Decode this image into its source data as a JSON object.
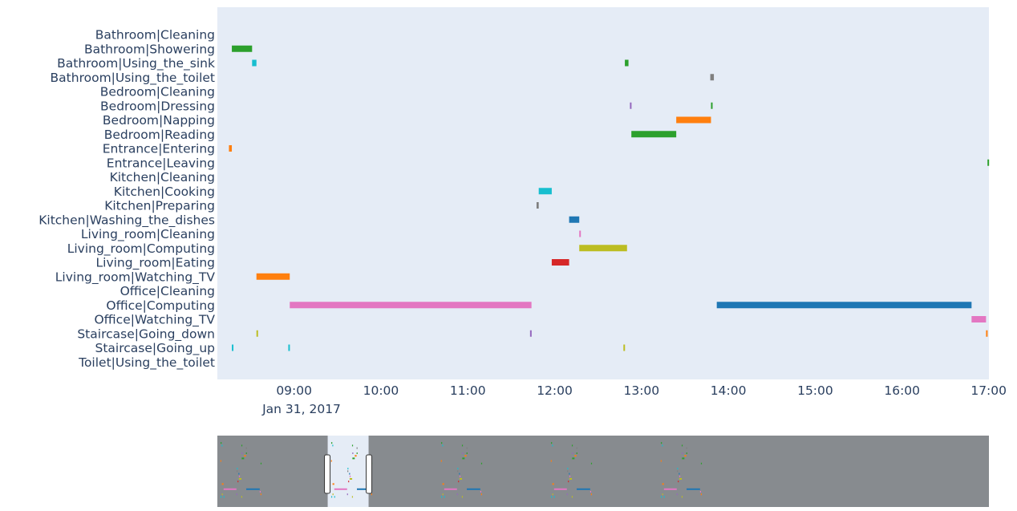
{
  "chart_data": {
    "type": "timeline",
    "date_label": "Jan 31, 2017",
    "x_ticks": [
      "09:00",
      "10:00",
      "11:00",
      "12:00",
      "13:00",
      "14:00",
      "15:00",
      "16:00",
      "17:00"
    ],
    "xlim": [
      "2017-01-31 08:07",
      "2017-01-31 17:00"
    ],
    "plot_bg": "#e5ecf6",
    "grid": false,
    "legend": false,
    "categories": [
      "Bathroom|Cleaning",
      "Bathroom|Showering",
      "Bathroom|Using_the_sink",
      "Bathroom|Using_the_toilet",
      "Bedroom|Cleaning",
      "Bedroom|Dressing",
      "Bedroom|Napping",
      "Bedroom|Reading",
      "Entrance|Entering",
      "Entrance|Leaving",
      "Kitchen|Cleaning",
      "Kitchen|Cooking",
      "Kitchen|Preparing",
      "Kitchen|Washing_the_dishes",
      "Living_room|Cleaning",
      "Living_room|Computing",
      "Living_room|Eating",
      "Living_room|Watching_TV",
      "Office|Cleaning",
      "Office|Computing",
      "Office|Watching_TV",
      "Staircase|Going_down",
      "Staircase|Going_up",
      "Toilet|Using_the_toilet"
    ],
    "segments": [
      {
        "category": "Bathroom|Showering",
        "start": "08:17",
        "end": "08:31",
        "color": "#2ca02c"
      },
      {
        "category": "Bathroom|Using_the_sink",
        "start": "08:31",
        "end": "08:34",
        "color": "#17becf"
      },
      {
        "category": "Bathroom|Using_the_sink",
        "start": "12:48.5",
        "end": "12:51",
        "color": "#2ca02c"
      },
      {
        "category": "Bathroom|Using_the_toilet",
        "start": "13:47.5",
        "end": "13:50",
        "color": "#7f7f7f"
      },
      {
        "category": "Bedroom|Dressing",
        "start": "12:52",
        "end": "12:53",
        "color": "#9467bd"
      },
      {
        "category": "Bedroom|Dressing",
        "start": "13:48",
        "end": "13:49",
        "color": "#2ca02c"
      },
      {
        "category": "Bedroom|Napping",
        "start": "13:24",
        "end": "13:48",
        "color": "#ff7f0e"
      },
      {
        "category": "Bedroom|Reading",
        "start": "12:53",
        "end": "13:24",
        "color": "#2ca02c"
      },
      {
        "category": "Entrance|Entering",
        "start": "08:15",
        "end": "08:17",
        "color": "#ff7f0e"
      },
      {
        "category": "Entrance|Leaving",
        "start": "16:59",
        "end": "17:00",
        "color": "#2ca02c"
      },
      {
        "category": "Kitchen|Cooking",
        "start": "11:49",
        "end": "11:58",
        "color": "#17becf"
      },
      {
        "category": "Kitchen|Preparing",
        "start": "11:47.5",
        "end": "11:49",
        "color": "#7f7f7f"
      },
      {
        "category": "Kitchen|Washing_the_dishes",
        "start": "12:10",
        "end": "12:17",
        "color": "#1f77b4"
      },
      {
        "category": "Living_room|Cleaning",
        "start": "12:17",
        "end": "12:18",
        "color": "#e377c2"
      },
      {
        "category": "Living_room|Computing",
        "start": "12:17",
        "end": "12:50",
        "color": "#bcbd22"
      },
      {
        "category": "Living_room|Eating",
        "start": "11:58",
        "end": "12:10",
        "color": "#d62728"
      },
      {
        "category": "Living_room|Watching_TV",
        "start": "08:34",
        "end": "08:57",
        "color": "#ff7f0e"
      },
      {
        "category": "Office|Computing",
        "start": "08:57",
        "end": "11:44",
        "color": "#e377c2"
      },
      {
        "category": "Office|Computing",
        "start": "13:52",
        "end": "16:48",
        "color": "#1f77b4"
      },
      {
        "category": "Office|Watching_TV",
        "start": "16:48",
        "end": "16:58",
        "color": "#e377c2"
      },
      {
        "category": "Staircase|Going_down",
        "start": "08:34",
        "end": "08:35",
        "color": "#bcbd22"
      },
      {
        "category": "Staircase|Going_down",
        "start": "11:43",
        "end": "11:44",
        "color": "#9467bd"
      },
      {
        "category": "Staircase|Going_down",
        "start": "16:58",
        "end": "16:59",
        "color": "#ff7f0e"
      },
      {
        "category": "Staircase|Going_up",
        "start": "08:17",
        "end": "08:18",
        "color": "#17becf"
      },
      {
        "category": "Staircase|Going_up",
        "start": "08:56",
        "end": "08:57",
        "color": "#17becf"
      },
      {
        "category": "Staircase|Going_up",
        "start": "12:47.5",
        "end": "12:48.5",
        "color": "#bcbd22"
      }
    ],
    "rangeslider": {
      "visible": true,
      "background": "#878b8f",
      "selected_background": "#e5ecf6",
      "selected_fraction": [
        0.143,
        0.196
      ]
    }
  }
}
